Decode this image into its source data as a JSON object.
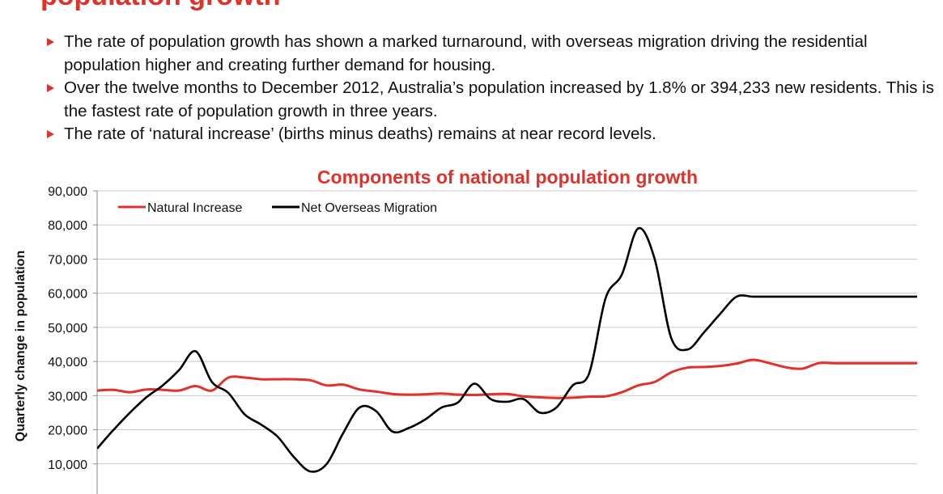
{
  "slide": {
    "title": "population growth",
    "bullets": [
      "The rate of population growth has shown a marked turnaround, with overseas migration driving the residential population higher and creating further demand for housing.",
      "Over the twelve months to December 2012, Australia’s population increased by 1.8% or 394,233 new residents.  This is the fastest rate of population growth in three years.",
      "The rate of ‘natural increase’ (births minus deaths) remains at near record levels."
    ]
  },
  "colors": {
    "title": "#e0312b",
    "natural_increase": "#e0312b",
    "net_overseas_migration": "#000000",
    "grid": "#c8c8c8"
  },
  "chart_data": {
    "type": "line",
    "title": "Components of national population growth",
    "xlabel": "",
    "ylabel": "Quarterly change in population",
    "ylim": [
      0,
      90000
    ],
    "yticks": [
      10000,
      20000,
      30000,
      40000,
      50000,
      60000,
      70000,
      80000,
      90000
    ],
    "ytick_labels": [
      "10,000",
      "20,000",
      "30,000",
      "40,000",
      "50,000",
      "60,000",
      "70,000",
      "80,000",
      "90,000"
    ],
    "grid": true,
    "legend_position": "top-left",
    "x": [
      0,
      2,
      4,
      6,
      8,
      10,
      12,
      14,
      16,
      18,
      20,
      22,
      24,
      26,
      28,
      30,
      32,
      34,
      36,
      38,
      40,
      42,
      44,
      46,
      48,
      50,
      52,
      54,
      56,
      58,
      60,
      62,
      64,
      66,
      68,
      70,
      72,
      74,
      76,
      78,
      80,
      82,
      84,
      86,
      88,
      90,
      92,
      94,
      96,
      98,
      100
    ],
    "series": [
      {
        "name": "Natural Increase",
        "values": [
          31500,
          31700,
          31000,
          31800,
          31700,
          31500,
          32800,
          31500,
          35300,
          35300,
          34800,
          34800,
          34800,
          34500,
          33000,
          33200,
          31800,
          31200,
          30500,
          30300,
          30400,
          30600,
          30300,
          30200,
          30400,
          30500,
          29800,
          29500,
          29300,
          29400,
          29700,
          29800,
          31000,
          33000,
          34000,
          36800,
          38200,
          38400,
          38700,
          39400,
          40500,
          39500,
          38300,
          37900,
          39500,
          39500,
          39500,
          39500,
          39500,
          39500,
          39500
        ]
      },
      {
        "name": "Net Overseas Migration",
        "values": [
          14500,
          20000,
          25000,
          29500,
          33000,
          37500,
          43000,
          34000,
          30800,
          24500,
          21500,
          18000,
          12000,
          7800,
          10000,
          19000,
          26500,
          25500,
          19500,
          20500,
          23000,
          26500,
          28000,
          33500,
          29000,
          28200,
          29000,
          25000,
          26500,
          33000,
          36500,
          58500,
          65500,
          79000,
          70000,
          47000,
          43500,
          48500,
          54000,
          59000,
          59000,
          59000,
          59000,
          59000,
          59000,
          59000,
          59000,
          59000,
          59000,
          59000,
          59000
        ]
      }
    ]
  }
}
